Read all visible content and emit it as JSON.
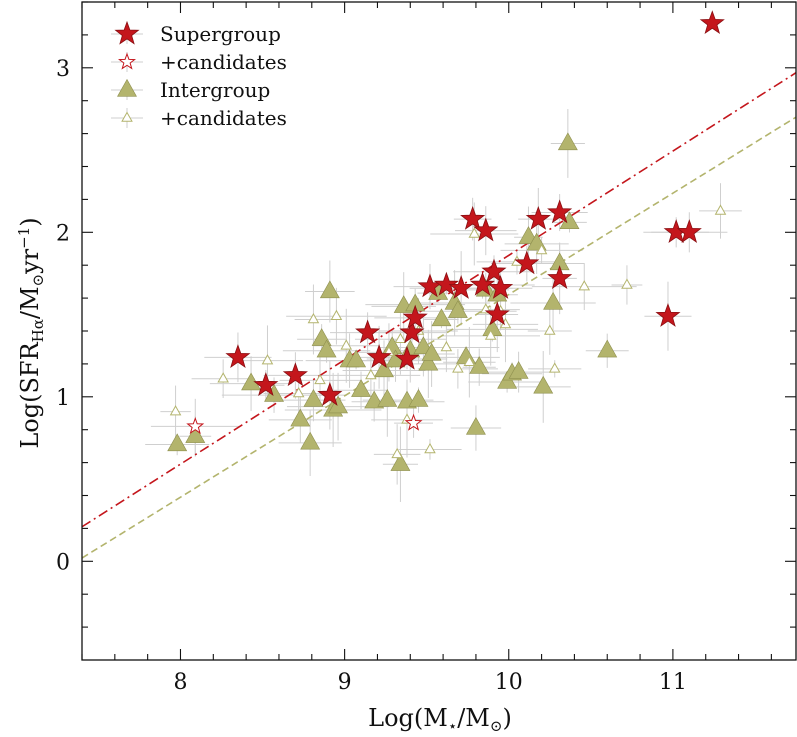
{
  "chart_data": {
    "type": "scatter",
    "title": "",
    "xlabel": "Log(M⋆/M⊙)",
    "ylabel": "Log(SFRₕα/M⊙yr⁻¹)",
    "xlabel_main": "Log(M",
    "xlabel_sub1": "⋆",
    "xlabel_mid": "/M",
    "xlabel_sub2": "⊙",
    "xlabel_end": ")",
    "ylabel_main": "Log(SFR",
    "ylabel_sub": "Hα",
    "ylabel_mid": "/M",
    "ylabel_sub2": "⊙",
    "ylabel_unit": "yr",
    "ylabel_sup": "−1",
    "ylabel_end": ")",
    "xlim": [
      7.4,
      11.75
    ],
    "ylim": [
      -0.6,
      3.4
    ],
    "xticks": [
      8,
      9,
      10,
      11
    ],
    "yticks": [
      0,
      1,
      2,
      3
    ],
    "xtick_labels": [
      "8",
      "9",
      "10",
      "11"
    ],
    "ytick_labels": [
      "0",
      "1",
      "2",
      "3"
    ],
    "grid": false,
    "legend_position": "top-left",
    "colors": {
      "supergroup": "#c4161c",
      "supergroup_edge": "#8a0f12",
      "intergroup": "#b3b46d",
      "intergroup_edge": "#8e8f4e",
      "errorbar": "#cfcfcf"
    },
    "fit_lines": [
      {
        "series": "Supergroup",
        "style": "dash-dot",
        "x": [
          7.4,
          11.75
        ],
        "y": [
          0.21,
          2.97
        ]
      },
      {
        "series": "Intergroup",
        "style": "dashed",
        "x": [
          7.4,
          11.75
        ],
        "y": [
          0.02,
          2.7
        ]
      }
    ],
    "series": [
      {
        "name": "Supergroup",
        "marker": "filled-star",
        "points": [
          [
            8.35,
            1.24
          ],
          [
            8.52,
            1.07
          ],
          [
            8.7,
            1.13
          ],
          [
            8.91,
            1.01
          ],
          [
            9.14,
            1.39
          ],
          [
            9.21,
            1.24
          ],
          [
            9.38,
            1.23
          ],
          [
            9.41,
            1.39
          ],
          [
            9.43,
            1.48
          ],
          [
            9.52,
            1.67
          ],
          [
            9.62,
            1.68
          ],
          [
            9.71,
            1.66
          ],
          [
            9.78,
            2.08
          ],
          [
            9.84,
            1.68
          ],
          [
            9.86,
            2.01
          ],
          [
            9.91,
            1.76
          ],
          [
            9.93,
            1.5
          ],
          [
            9.95,
            1.66
          ],
          [
            10.11,
            1.81
          ],
          [
            10.18,
            2.08
          ],
          [
            10.31,
            2.12
          ],
          [
            10.31,
            1.72
          ],
          [
            10.97,
            1.49
          ],
          [
            11.02,
            2.0
          ],
          [
            11.1,
            2.0
          ],
          [
            11.24,
            3.27
          ]
        ]
      },
      {
        "name": "+candidates",
        "marker": "open-star",
        "points": [
          [
            8.09,
            0.82
          ],
          [
            9.42,
            0.84
          ]
        ]
      },
      {
        "name": "Intergroup",
        "marker": "filled-triangle",
        "points": [
          [
            7.98,
            0.71
          ],
          [
            8.09,
            0.76
          ],
          [
            8.43,
            1.08
          ],
          [
            8.57,
            1.01
          ],
          [
            8.73,
            0.86
          ],
          [
            8.79,
            0.72
          ],
          [
            8.81,
            0.98
          ],
          [
            8.86,
            1.35
          ],
          [
            8.89,
            1.28
          ],
          [
            8.91,
            1.64
          ],
          [
            8.93,
            0.92
          ],
          [
            8.96,
            0.94
          ],
          [
            9.03,
            1.22
          ],
          [
            9.07,
            1.22
          ],
          [
            9.1,
            1.04
          ],
          [
            9.18,
            0.97
          ],
          [
            9.24,
            1.16
          ],
          [
            9.26,
            0.98
          ],
          [
            9.29,
            1.3
          ],
          [
            9.31,
            1.22
          ],
          [
            9.34,
            0.59
          ],
          [
            9.36,
            1.55
          ],
          [
            9.38,
            0.97
          ],
          [
            9.4,
            1.28
          ],
          [
            9.43,
            1.56
          ],
          [
            9.45,
            0.98
          ],
          [
            9.48,
            1.3
          ],
          [
            9.51,
            1.2
          ],
          [
            9.53,
            1.26
          ],
          [
            9.57,
            1.63
          ],
          [
            9.59,
            1.47
          ],
          [
            9.67,
            1.57
          ],
          [
            9.69,
            1.52
          ],
          [
            9.74,
            1.24
          ],
          [
            9.8,
            0.81
          ],
          [
            9.82,
            1.18
          ],
          [
            9.86,
            1.65
          ],
          [
            9.9,
            1.41
          ],
          [
            9.93,
            1.62
          ],
          [
            9.99,
            1.09
          ],
          [
            10.02,
            1.14
          ],
          [
            10.06,
            1.15
          ],
          [
            10.12,
            1.97
          ],
          [
            10.17,
            1.93
          ],
          [
            10.21,
            1.06
          ],
          [
            10.27,
            1.57
          ],
          [
            10.31,
            1.81
          ],
          [
            10.36,
            2.54
          ],
          [
            10.37,
            2.06
          ],
          [
            10.6,
            1.28
          ]
        ]
      },
      {
        "name": "+candidates",
        "marker": "open-triangle",
        "points": [
          [
            7.97,
            0.91
          ],
          [
            8.26,
            1.11
          ],
          [
            8.53,
            1.22
          ],
          [
            8.72,
            1.02
          ],
          [
            8.81,
            1.47
          ],
          [
            8.85,
            1.1
          ],
          [
            8.95,
            1.49
          ],
          [
            9.01,
            1.31
          ],
          [
            9.16,
            1.13
          ],
          [
            9.27,
            1.27
          ],
          [
            9.34,
            1.35
          ],
          [
            9.38,
            0.86
          ],
          [
            9.45,
            1.4
          ],
          [
            9.52,
            0.68
          ],
          [
            9.62,
            1.3
          ],
          [
            9.69,
            1.17
          ],
          [
            9.79,
            1.99
          ],
          [
            9.86,
            1.53
          ],
          [
            9.89,
            1.37
          ],
          [
            9.95,
            1.52
          ],
          [
            9.98,
            1.44
          ],
          [
            10.05,
            1.82
          ],
          [
            10.2,
            1.89
          ],
          [
            10.25,
            1.4
          ],
          [
            10.28,
            1.17
          ],
          [
            10.46,
            1.67
          ],
          [
            10.72,
            1.68
          ],
          [
            11.29,
            2.13
          ],
          [
            9.32,
            0.65
          ],
          [
            9.76,
            1.21
          ]
        ]
      }
    ],
    "legend": [
      {
        "label": "Supergroup",
        "marker": "filled-star"
      },
      {
        "label": "+candidates",
        "marker": "open-star"
      },
      {
        "label": "Intergroup",
        "marker": "filled-triangle"
      },
      {
        "label": "+candidates",
        "marker": "open-triangle"
      }
    ]
  }
}
